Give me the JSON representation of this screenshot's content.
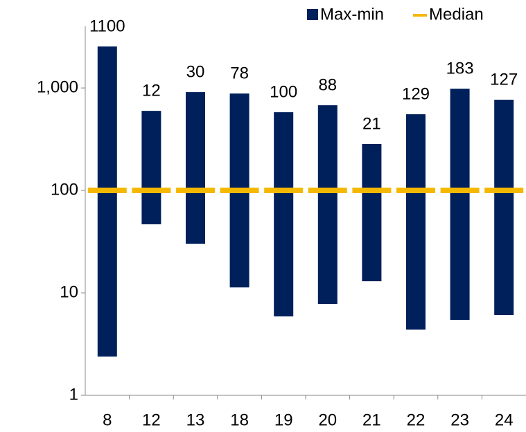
{
  "chart_data": {
    "type": "floating_bar",
    "categories": [
      "8",
      "12",
      "13",
      "18",
      "19",
      "20",
      "21",
      "22",
      "23",
      "24"
    ],
    "series": [
      {
        "name": "Max-min",
        "color": "#00205b",
        "low": [
          2.39,
          46.7,
          30.2,
          11.3,
          5.89,
          7.8,
          13.0,
          4.38,
          5.45,
          6.08
        ],
        "high": [
          2540,
          598,
          911,
          883,
          580,
          678,
          284,
          554,
          984,
          768
        ]
      },
      {
        "name": "Median",
        "color": "#f5b800",
        "values": [
          100,
          100,
          100,
          100,
          100,
          100,
          100,
          100,
          100,
          100
        ]
      }
    ],
    "bar_labels": [
      "1100",
      "12",
      "30",
      "78",
      "100",
      "88",
      "21",
      "129",
      "183",
      "127"
    ],
    "ylim": [
      1,
      4000
    ],
    "log_y": true,
    "yticks": [
      1,
      10,
      100,
      {
        "value": 1000,
        "label": "1,000"
      }
    ],
    "legend": "top-right",
    "grid": false
  }
}
